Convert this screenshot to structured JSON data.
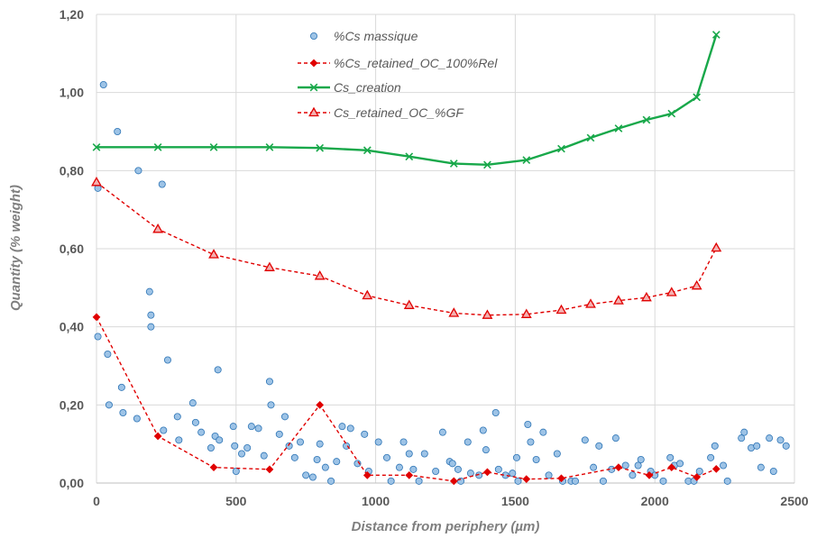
{
  "chart_data": {
    "type": "scatter",
    "xlabel": "Distance from periphery (µm)",
    "ylabel": "Quantity (% weight)",
    "xlim": [
      0,
      2500
    ],
    "ylim": [
      0,
      1.2
    ],
    "xticks": [
      0,
      500,
      1000,
      1500,
      2000,
      2500
    ],
    "xtick_labels": [
      "0",
      "500",
      "1000",
      "1500",
      "2000",
      "2500"
    ],
    "yticks": [
      0,
      0.2,
      0.4,
      0.6,
      0.8,
      1.0,
      1.2
    ],
    "ytick_labels": [
      "0,00",
      "0,20",
      "0,40",
      "0,60",
      "0,80",
      "1,00",
      "1,20"
    ],
    "grid": true,
    "legend_position": "top-center",
    "series": [
      {
        "name": "%Cs massique",
        "kind": "scatter",
        "color": "#9dc3e6",
        "edge_color": "#2e75b6",
        "points": [
          [
            5,
            0.755
          ],
          [
            5,
            0.375
          ],
          [
            25,
            1.02
          ],
          [
            40,
            0.33
          ],
          [
            45,
            0.2
          ],
          [
            75,
            0.9
          ],
          [
            90,
            0.245
          ],
          [
            95,
            0.18
          ],
          [
            145,
            0.165
          ],
          [
            150,
            0.8
          ],
          [
            190,
            0.49
          ],
          [
            195,
            0.43
          ],
          [
            195,
            0.4
          ],
          [
            235,
            0.765
          ],
          [
            240,
            0.135
          ],
          [
            255,
            0.315
          ],
          [
            290,
            0.17
          ],
          [
            295,
            0.11
          ],
          [
            345,
            0.205
          ],
          [
            355,
            0.155
          ],
          [
            375,
            0.13
          ],
          [
            410,
            0.09
          ],
          [
            425,
            0.12
          ],
          [
            435,
            0.29
          ],
          [
            440,
            0.11
          ],
          [
            490,
            0.145
          ],
          [
            495,
            0.095
          ],
          [
            500,
            0.03
          ],
          [
            520,
            0.075
          ],
          [
            540,
            0.09
          ],
          [
            555,
            0.145
          ],
          [
            580,
            0.14
          ],
          [
            600,
            0.07
          ],
          [
            620,
            0.26
          ],
          [
            625,
            0.2
          ],
          [
            655,
            0.125
          ],
          [
            675,
            0.17
          ],
          [
            690,
            0.095
          ],
          [
            710,
            0.065
          ],
          [
            730,
            0.105
          ],
          [
            750,
            0.02
          ],
          [
            775,
            0.015
          ],
          [
            790,
            0.06
          ],
          [
            800,
            0.1
          ],
          [
            820,
            0.04
          ],
          [
            840,
            0.005
          ],
          [
            860,
            0.055
          ],
          [
            880,
            0.145
          ],
          [
            895,
            0.095
          ],
          [
            910,
            0.14
          ],
          [
            935,
            0.05
          ],
          [
            960,
            0.125
          ],
          [
            975,
            0.03
          ],
          [
            1010,
            0.105
          ],
          [
            1040,
            0.065
          ],
          [
            1055,
            0.005
          ],
          [
            1085,
            0.04
          ],
          [
            1100,
            0.105
          ],
          [
            1120,
            0.075
          ],
          [
            1135,
            0.035
          ],
          [
            1155,
            0.005
          ],
          [
            1175,
            0.075
          ],
          [
            1215,
            0.03
          ],
          [
            1240,
            0.13
          ],
          [
            1265,
            0.055
          ],
          [
            1275,
            0.05
          ],
          [
            1295,
            0.035
          ],
          [
            1305,
            0.005
          ],
          [
            1330,
            0.105
          ],
          [
            1340,
            0.025
          ],
          [
            1370,
            0.02
          ],
          [
            1385,
            0.135
          ],
          [
            1395,
            0.085
          ],
          [
            1430,
            0.18
          ],
          [
            1440,
            0.035
          ],
          [
            1465,
            0.02
          ],
          [
            1490,
            0.025
          ],
          [
            1505,
            0.065
          ],
          [
            1510,
            0.005
          ],
          [
            1545,
            0.15
          ],
          [
            1555,
            0.105
          ],
          [
            1575,
            0.06
          ],
          [
            1600,
            0.13
          ],
          [
            1620,
            0.02
          ],
          [
            1650,
            0.075
          ],
          [
            1670,
            0.005
          ],
          [
            1700,
            0.005
          ],
          [
            1715,
            0.005
          ],
          [
            1750,
            0.11
          ],
          [
            1780,
            0.04
          ],
          [
            1800,
            0.095
          ],
          [
            1815,
            0.005
          ],
          [
            1845,
            0.035
          ],
          [
            1860,
            0.115
          ],
          [
            1895,
            0.045
          ],
          [
            1920,
            0.02
          ],
          [
            1940,
            0.045
          ],
          [
            1950,
            0.06
          ],
          [
            1985,
            0.03
          ],
          [
            2000,
            0.02
          ],
          [
            2030,
            0.005
          ],
          [
            2055,
            0.065
          ],
          [
            2070,
            0.045
          ],
          [
            2090,
            0.05
          ],
          [
            2120,
            0.005
          ],
          [
            2140,
            0.005
          ],
          [
            2160,
            0.03
          ],
          [
            2200,
            0.065
          ],
          [
            2215,
            0.095
          ],
          [
            2245,
            0.045
          ],
          [
            2260,
            0.005
          ],
          [
            2310,
            0.115
          ],
          [
            2320,
            0.13
          ],
          [
            2345,
            0.09
          ],
          [
            2365,
            0.095
          ],
          [
            2380,
            0.04
          ],
          [
            2410,
            0.115
          ],
          [
            2425,
            0.03
          ],
          [
            2450,
            0.11
          ],
          [
            2470,
            0.095
          ]
        ]
      },
      {
        "name": "%Cs_retained_OC_100%Rel",
        "kind": "line",
        "color": "#e00000",
        "dashed": true,
        "marker": "diamond",
        "points": [
          [
            0,
            0.425
          ],
          [
            220,
            0.12
          ],
          [
            420,
            0.04
          ],
          [
            620,
            0.035
          ],
          [
            800,
            0.2
          ],
          [
            970,
            0.02
          ],
          [
            1120,
            0.02
          ],
          [
            1280,
            0.005
          ],
          [
            1400,
            0.028
          ],
          [
            1540,
            0.01
          ],
          [
            1665,
            0.012
          ],
          [
            1870,
            0.04
          ],
          [
            1980,
            0.02
          ],
          [
            2060,
            0.04
          ],
          [
            2150,
            0.015
          ],
          [
            2220,
            0.036
          ]
        ]
      },
      {
        "name": "Cs_creation",
        "kind": "line",
        "color": "#18a84a",
        "dashed": false,
        "marker": "x",
        "points": [
          [
            0,
            0.86
          ],
          [
            220,
            0.86
          ],
          [
            420,
            0.86
          ],
          [
            620,
            0.86
          ],
          [
            800,
            0.858
          ],
          [
            970,
            0.852
          ],
          [
            1120,
            0.836
          ],
          [
            1280,
            0.818
          ],
          [
            1400,
            0.815
          ],
          [
            1540,
            0.827
          ],
          [
            1665,
            0.856
          ],
          [
            1770,
            0.884
          ],
          [
            1870,
            0.908
          ],
          [
            1970,
            0.93
          ],
          [
            2060,
            0.946
          ],
          [
            2150,
            0.988
          ],
          [
            2220,
            1.148
          ]
        ]
      },
      {
        "name": "Cs_retained_OC_%GF",
        "kind": "line",
        "color": "#e00000",
        "dashed": true,
        "marker": "triangle",
        "points": [
          [
            0,
            0.77
          ],
          [
            220,
            0.65
          ],
          [
            420,
            0.585
          ],
          [
            620,
            0.552
          ],
          [
            800,
            0.53
          ],
          [
            970,
            0.48
          ],
          [
            1120,
            0.455
          ],
          [
            1280,
            0.435
          ],
          [
            1400,
            0.43
          ],
          [
            1540,
            0.432
          ],
          [
            1665,
            0.443
          ],
          [
            1770,
            0.458
          ],
          [
            1870,
            0.467
          ],
          [
            1970,
            0.475
          ],
          [
            2060,
            0.488
          ],
          [
            2150,
            0.505
          ],
          [
            2220,
            0.602
          ]
        ]
      }
    ]
  }
}
